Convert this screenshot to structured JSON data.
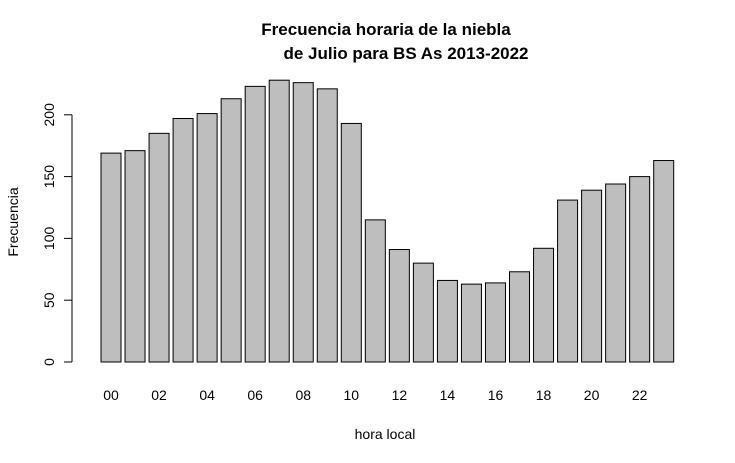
{
  "chart_data": {
    "type": "bar",
    "title_line1": "Frecuencia horaria de la niebla",
    "title_line2": "de Julio para BS As 2013-2022",
    "xlabel": "hora local",
    "ylabel": "Frecuencia",
    "categories": [
      "00",
      "01",
      "02",
      "03",
      "04",
      "05",
      "06",
      "07",
      "08",
      "09",
      "10",
      "11",
      "12",
      "13",
      "14",
      "15",
      "16",
      "17",
      "18",
      "19",
      "20",
      "21",
      "22",
      "23"
    ],
    "x_tick_labels": [
      "00",
      "02",
      "04",
      "06",
      "08",
      "10",
      "12",
      "14",
      "16",
      "18",
      "20",
      "22"
    ],
    "values": [
      169,
      171,
      185,
      197,
      201,
      213,
      223,
      228,
      226,
      221,
      193,
      115,
      91,
      80,
      66,
      63,
      64,
      73,
      92,
      131,
      139,
      144,
      150,
      163
    ],
    "y_ticks": [
      0,
      50,
      100,
      150,
      200
    ],
    "ylim": [
      0,
      228
    ],
    "bar_color": "#bebebe",
    "grid": false
  }
}
